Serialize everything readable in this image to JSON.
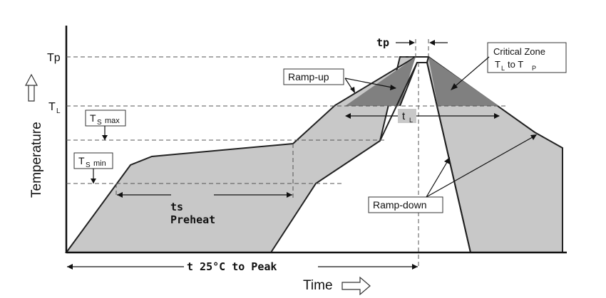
{
  "labels": {
    "tp_level": "Tp",
    "tl_level": "T",
    "tl_level_sub": "L",
    "ts_max_main": "T",
    "ts_max_sub1": "S",
    "ts_max_sub2": "max",
    "ts_min_main": "T",
    "ts_min_sub1": "S",
    "ts_min_sub2": "min",
    "tp_time": "tp",
    "tl_time": "t",
    "tl_time_sub": "L",
    "ts_time": "ts",
    "preheat": "Preheat",
    "t25_to_peak": "t 25°C to Peak",
    "ramp_up": "Ramp-up",
    "ramp_down": "Ramp-down",
    "critical_zone_line1": "Critical Zone",
    "critical_zone_T1": "T",
    "critical_zone_L": "L",
    "critical_zone_to": "to T",
    "critical_zone_P": "P",
    "y_axis": "Temperature",
    "x_axis": "Time"
  },
  "colors": {
    "light_fill": "#c8c8c8",
    "dark_fill": "#808080",
    "outline": "#222222"
  }
}
